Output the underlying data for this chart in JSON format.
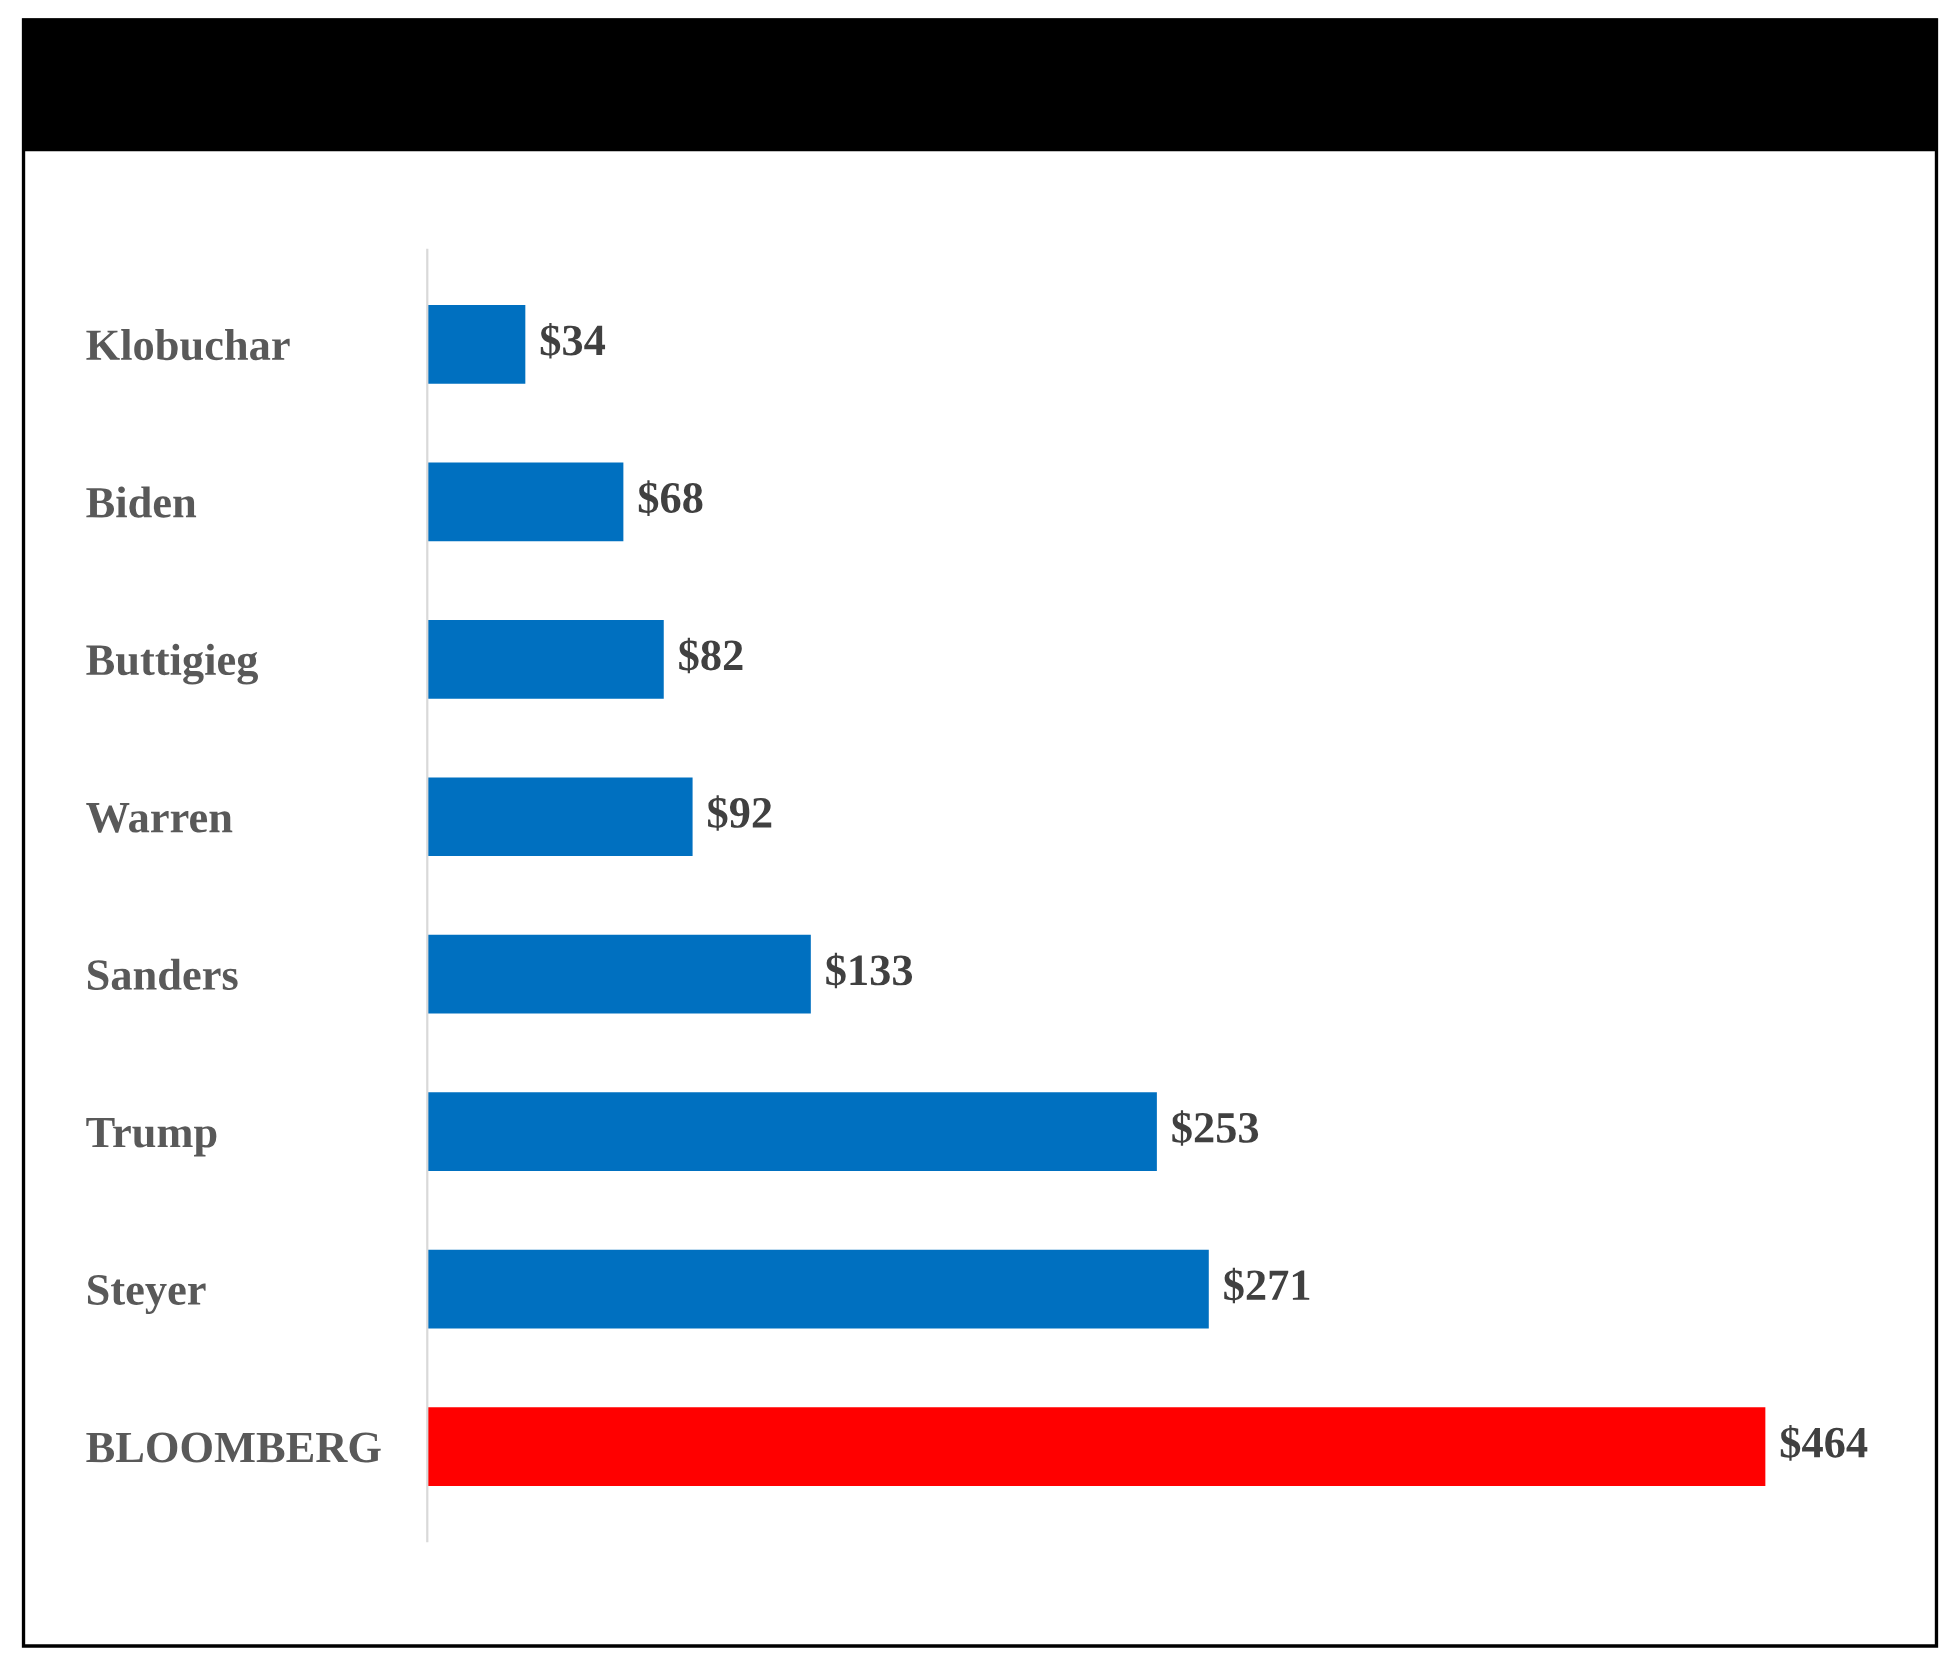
{
  "chart_data": {
    "type": "bar",
    "orientation": "horizontal",
    "categories": [
      "Klobuchar",
      "Biden",
      "Buttigieg",
      "Warren",
      "Sanders",
      "Trump",
      "Steyer",
      "BLOOMBERG"
    ],
    "values": [
      34,
      68,
      82,
      92,
      133,
      253,
      271,
      464
    ],
    "colors": [
      "#0070c0",
      "#0070c0",
      "#0070c0",
      "#0070c0",
      "#0070c0",
      "#0070c0",
      "#0070c0",
      "#ff0000"
    ],
    "value_labels": [
      "$34",
      "$68",
      "$82",
      "$92",
      "$133",
      "$253",
      "$271",
      "$464"
    ],
    "grid": false,
    "legend": false,
    "tick_labels": "y"
  }
}
